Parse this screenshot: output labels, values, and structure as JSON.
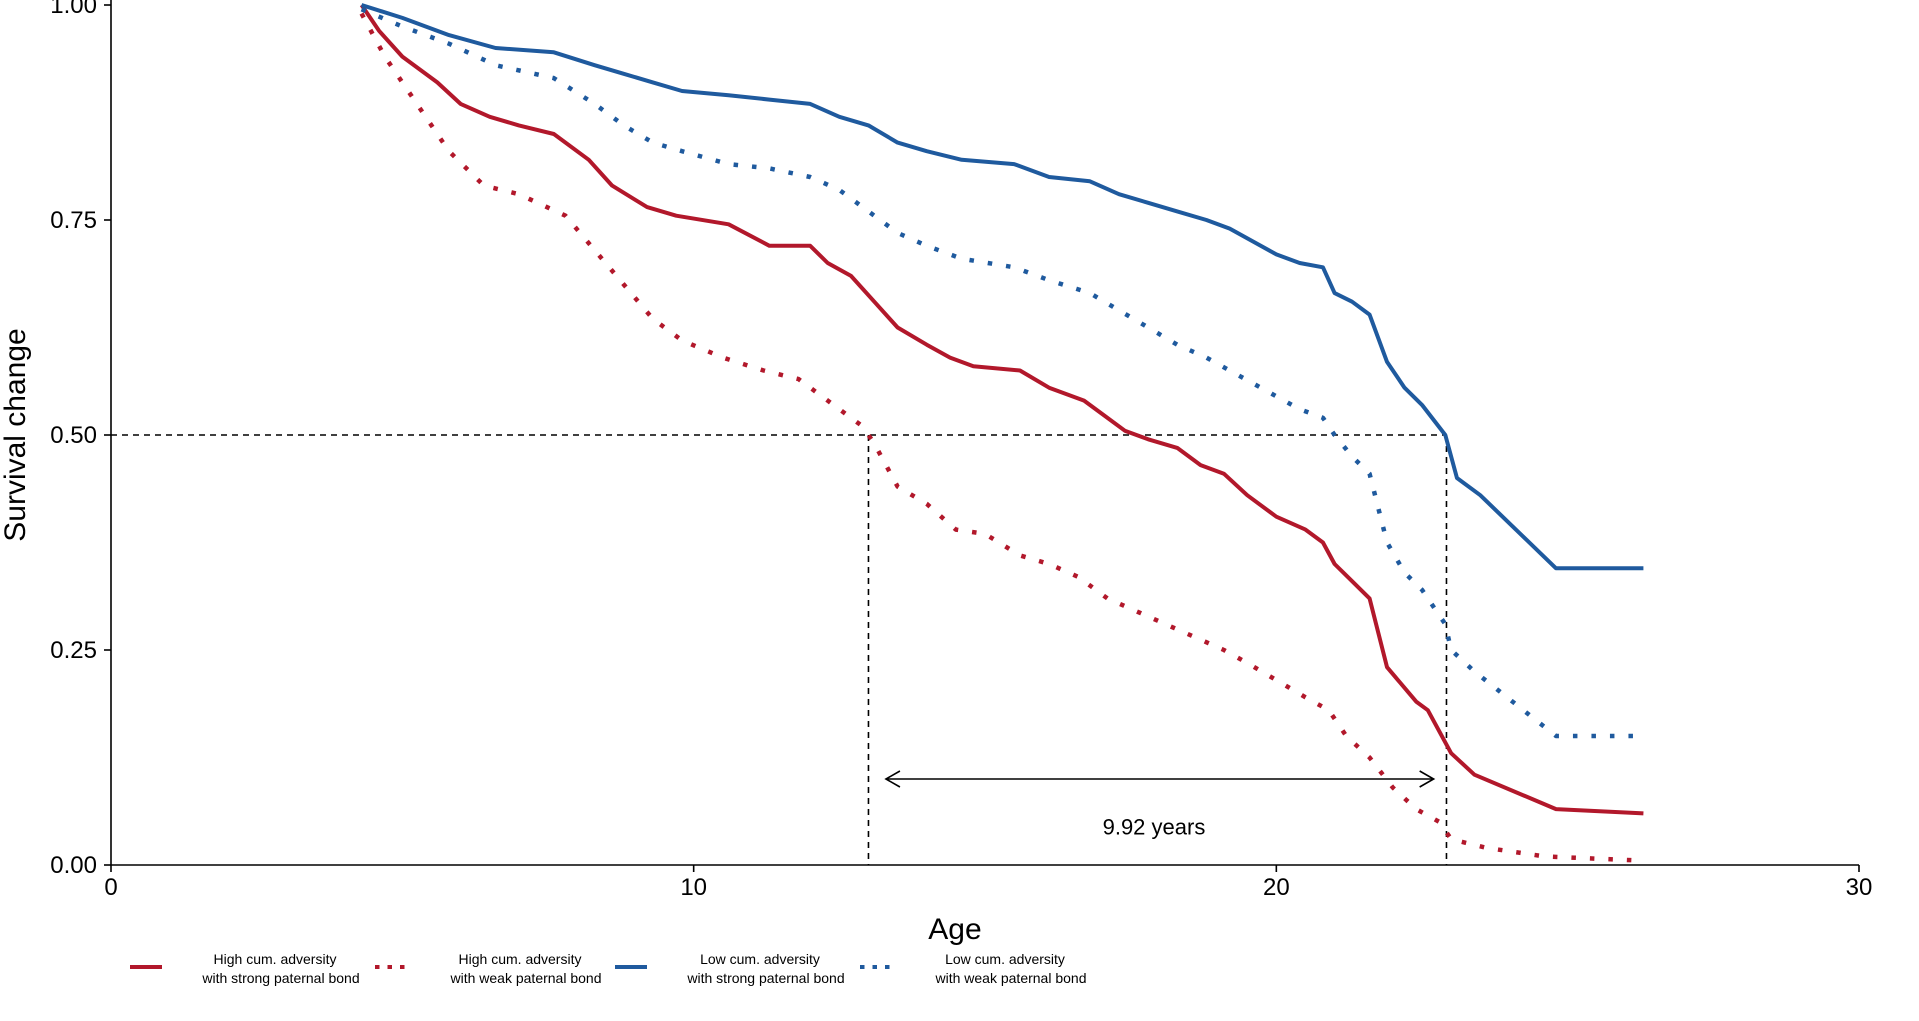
{
  "chart_data": {
    "type": "line",
    "title": "",
    "xlabel": "Age",
    "ylabel": "Survival change",
    "xlim": [
      0,
      30
    ],
    "ylim": [
      0,
      1
    ],
    "x_ticks": [
      "0",
      "10",
      "20",
      "30"
    ],
    "x_tick_values": [
      0,
      10,
      20,
      30
    ],
    "y_ticks": [
      "0.00",
      "0.25",
      "0.50",
      "0.75",
      "1.00"
    ],
    "y_tick_values": [
      0,
      0.25,
      0.5,
      0.75,
      1.0
    ],
    "grid": false,
    "legend_position": "bottom",
    "colors": {
      "high": "#b2182b",
      "low": "#1f5a9e"
    },
    "series": [
      {
        "name": "High cum. adversity\nwith strong paternal bond",
        "legend_line1": "High cum. adversity",
        "legend_line2": "with strong paternal bond",
        "color": "#b2182b",
        "dash": "solid",
        "points": [
          [
            4.3,
            1.0
          ],
          [
            4.6,
            0.97
          ],
          [
            5.0,
            0.94
          ],
          [
            5.6,
            0.91
          ],
          [
            6.0,
            0.885
          ],
          [
            6.5,
            0.87
          ],
          [
            7.0,
            0.86
          ],
          [
            7.6,
            0.85
          ],
          [
            8.2,
            0.82
          ],
          [
            8.6,
            0.79
          ],
          [
            9.2,
            0.765
          ],
          [
            9.7,
            0.755
          ],
          [
            10.6,
            0.745
          ],
          [
            11.3,
            0.72
          ],
          [
            12.0,
            0.72
          ],
          [
            12.3,
            0.7
          ],
          [
            12.7,
            0.685
          ],
          [
            13.1,
            0.655
          ],
          [
            13.5,
            0.625
          ],
          [
            14.0,
            0.605
          ],
          [
            14.4,
            0.59
          ],
          [
            14.8,
            0.58
          ],
          [
            15.6,
            0.575
          ],
          [
            16.1,
            0.555
          ],
          [
            16.7,
            0.54
          ],
          [
            17.0,
            0.525
          ],
          [
            17.4,
            0.505
          ],
          [
            17.8,
            0.495
          ],
          [
            18.3,
            0.485
          ],
          [
            18.7,
            0.465
          ],
          [
            19.1,
            0.455
          ],
          [
            19.5,
            0.43
          ],
          [
            20.0,
            0.405
          ],
          [
            20.5,
            0.39
          ],
          [
            20.8,
            0.375
          ],
          [
            21.0,
            0.35
          ],
          [
            21.3,
            0.33
          ],
          [
            21.6,
            0.31
          ],
          [
            21.9,
            0.23
          ],
          [
            22.4,
            0.19
          ],
          [
            22.6,
            0.18
          ],
          [
            23.0,
            0.13
          ],
          [
            23.4,
            0.105
          ],
          [
            24.8,
            0.065
          ],
          [
            26.3,
            0.06
          ]
        ]
      },
      {
        "name": "High cum. adversity\nwith weak paternal bond",
        "legend_line1": "High cum. adversity",
        "legend_line2": "with weak paternal bond",
        "color": "#b2182b",
        "dash": "dotted",
        "points": [
          [
            4.3,
            0.99
          ],
          [
            4.7,
            0.94
          ],
          [
            5.3,
            0.88
          ],
          [
            5.8,
            0.83
          ],
          [
            6.4,
            0.79
          ],
          [
            7.0,
            0.78
          ],
          [
            7.8,
            0.755
          ],
          [
            8.3,
            0.715
          ],
          [
            8.8,
            0.675
          ],
          [
            9.3,
            0.635
          ],
          [
            9.8,
            0.61
          ],
          [
            10.5,
            0.59
          ],
          [
            11.2,
            0.575
          ],
          [
            11.8,
            0.565
          ],
          [
            12.3,
            0.54
          ],
          [
            12.9,
            0.51
          ],
          [
            13.1,
            0.49
          ],
          [
            13.5,
            0.44
          ],
          [
            14.0,
            0.42
          ],
          [
            14.5,
            0.39
          ],
          [
            15.0,
            0.385
          ],
          [
            15.6,
            0.36
          ],
          [
            16.1,
            0.35
          ],
          [
            16.6,
            0.335
          ],
          [
            17.1,
            0.31
          ],
          [
            17.6,
            0.295
          ],
          [
            18.1,
            0.28
          ],
          [
            18.6,
            0.265
          ],
          [
            19.1,
            0.25
          ],
          [
            19.5,
            0.235
          ],
          [
            20.0,
            0.215
          ],
          [
            20.5,
            0.195
          ],
          [
            20.9,
            0.18
          ],
          [
            21.2,
            0.15
          ],
          [
            21.6,
            0.125
          ],
          [
            22.0,
            0.09
          ],
          [
            22.4,
            0.065
          ],
          [
            22.8,
            0.05
          ],
          [
            23.0,
            0.03
          ],
          [
            23.6,
            0.02
          ],
          [
            24.6,
            0.01
          ],
          [
            26.3,
            0.005
          ]
        ]
      },
      {
        "name": "Low cum. adversity\nwith strong paternal bond",
        "legend_line1": "Low cum. adversity",
        "legend_line2": "with strong paternal bond",
        "color": "#1f5a9e",
        "dash": "solid",
        "points": [
          [
            4.3,
            1.0
          ],
          [
            5.0,
            0.985
          ],
          [
            5.8,
            0.965
          ],
          [
            6.6,
            0.95
          ],
          [
            7.6,
            0.945
          ],
          [
            8.3,
            0.93
          ],
          [
            8.8,
            0.92
          ],
          [
            9.3,
            0.91
          ],
          [
            9.8,
            0.9
          ],
          [
            10.6,
            0.895
          ],
          [
            11.3,
            0.89
          ],
          [
            12.0,
            0.885
          ],
          [
            12.5,
            0.87
          ],
          [
            13.0,
            0.86
          ],
          [
            13.5,
            0.84
          ],
          [
            14.0,
            0.83
          ],
          [
            14.6,
            0.82
          ],
          [
            15.5,
            0.815
          ],
          [
            16.1,
            0.8
          ],
          [
            16.8,
            0.795
          ],
          [
            17.3,
            0.78
          ],
          [
            17.8,
            0.77
          ],
          [
            18.3,
            0.76
          ],
          [
            18.8,
            0.75
          ],
          [
            19.2,
            0.74
          ],
          [
            19.6,
            0.725
          ],
          [
            20.0,
            0.71
          ],
          [
            20.4,
            0.7
          ],
          [
            20.8,
            0.695
          ],
          [
            21.0,
            0.665
          ],
          [
            21.3,
            0.655
          ],
          [
            21.6,
            0.64
          ],
          [
            21.9,
            0.585
          ],
          [
            22.2,
            0.555
          ],
          [
            22.5,
            0.535
          ],
          [
            22.9,
            0.5
          ],
          [
            23.1,
            0.45
          ],
          [
            23.5,
            0.43
          ],
          [
            24.8,
            0.345
          ],
          [
            26.3,
            0.345
          ]
        ]
      },
      {
        "name": "Low cum. adversity\nwith weak paternal bond",
        "legend_line1": "Low cum. adversity",
        "legend_line2": "with weak paternal bond",
        "color": "#1f5a9e",
        "dash": "dotted",
        "points": [
          [
            4.3,
            0.995
          ],
          [
            5.0,
            0.975
          ],
          [
            5.8,
            0.955
          ],
          [
            6.6,
            0.93
          ],
          [
            7.6,
            0.915
          ],
          [
            8.3,
            0.885
          ],
          [
            8.8,
            0.86
          ],
          [
            9.3,
            0.84
          ],
          [
            9.8,
            0.83
          ],
          [
            10.6,
            0.815
          ],
          [
            11.3,
            0.81
          ],
          [
            12.0,
            0.8
          ],
          [
            12.5,
            0.785
          ],
          [
            13.0,
            0.76
          ],
          [
            13.5,
            0.735
          ],
          [
            14.0,
            0.72
          ],
          [
            14.6,
            0.705
          ],
          [
            15.5,
            0.695
          ],
          [
            16.1,
            0.68
          ],
          [
            16.8,
            0.665
          ],
          [
            17.3,
            0.645
          ],
          [
            17.8,
            0.625
          ],
          [
            18.3,
            0.605
          ],
          [
            18.8,
            0.59
          ],
          [
            19.2,
            0.575
          ],
          [
            19.6,
            0.56
          ],
          [
            20.0,
            0.545
          ],
          [
            20.4,
            0.53
          ],
          [
            20.8,
            0.52
          ],
          [
            21.0,
            0.5
          ],
          [
            21.3,
            0.475
          ],
          [
            21.6,
            0.455
          ],
          [
            21.9,
            0.375
          ],
          [
            22.2,
            0.34
          ],
          [
            22.5,
            0.32
          ],
          [
            22.9,
            0.28
          ],
          [
            23.0,
            0.25
          ],
          [
            23.4,
            0.225
          ],
          [
            24.8,
            0.15
          ],
          [
            26.3,
            0.15
          ]
        ]
      }
    ],
    "annotations": {
      "reference_y": 0.5,
      "median_high_weak_x": 13.0,
      "median_low_strong_x": 22.92,
      "arrow_y": 0.1,
      "arrow_from_x": 13.3,
      "arrow_to_x": 22.7,
      "difference_label": "9.92 years",
      "difference_label_x": 17.9,
      "difference_label_y": 0.045
    }
  }
}
